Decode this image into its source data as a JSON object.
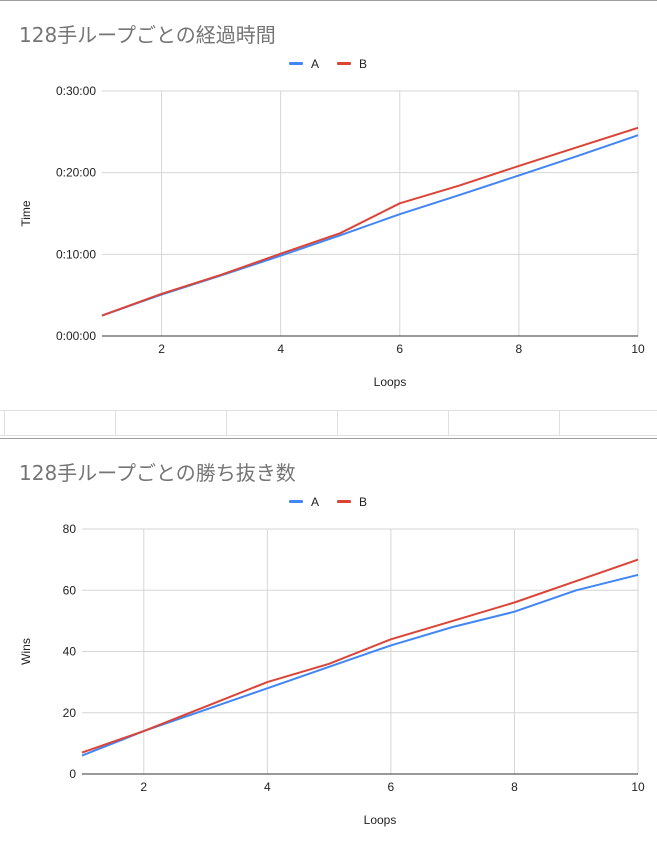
{
  "chart_data": [
    {
      "type": "line",
      "title": "128手ループごとの経過時間",
      "xlabel": "Loops",
      "ylabel": "Time",
      "x": [
        1,
        2,
        3,
        4,
        5,
        6,
        7,
        8,
        9,
        10
      ],
      "xlim": [
        1,
        10
      ],
      "xticks": [
        2,
        4,
        6,
        8,
        10
      ],
      "ylim_seconds": [
        0,
        1800
      ],
      "yticks": [
        "0:00:00",
        "0:10:00",
        "0:20:00",
        "0:30:00"
      ],
      "y_unit": "seconds (displayed as h:mm:ss)",
      "series": [
        {
          "name": "A",
          "color": "#4285f4",
          "values_seconds": [
            150,
            305,
            445,
            590,
            740,
            895,
            1035,
            1180,
            1325,
            1475
          ]
        },
        {
          "name": "B",
          "color": "#db4437",
          "values_seconds": [
            150,
            310,
            450,
            605,
            755,
            975,
            1105,
            1250,
            1390,
            1530
          ]
        }
      ],
      "grid": true,
      "legend_position": "top-center"
    },
    {
      "type": "line",
      "title": "128手ループごとの勝ち抜き数",
      "xlabel": "Loops",
      "ylabel": "Wins",
      "x": [
        1,
        2,
        3,
        4,
        5,
        6,
        7,
        8,
        9,
        10
      ],
      "xlim": [
        1,
        10
      ],
      "xticks": [
        2,
        4,
        6,
        8,
        10
      ],
      "ylim": [
        0,
        80
      ],
      "yticks": [
        "0",
        "20",
        "40",
        "60",
        "80"
      ],
      "series": [
        {
          "name": "A",
          "color": "#4285f4",
          "values": [
            6,
            14,
            21,
            28,
            35,
            42,
            48,
            53,
            60,
            65
          ]
        },
        {
          "name": "B",
          "color": "#db4437",
          "values": [
            7,
            14,
            22,
            30,
            36,
            44,
            50,
            56,
            63,
            70
          ]
        }
      ],
      "grid": true,
      "legend_position": "top-center"
    }
  ]
}
